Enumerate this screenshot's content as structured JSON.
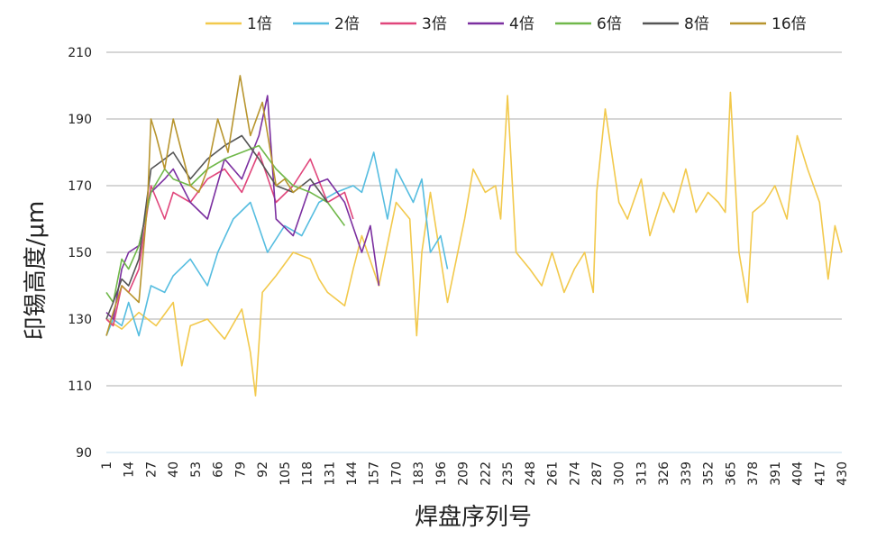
{
  "chart_data": {
    "type": "line",
    "xlabel": "焊盘序列号",
    "ylabel": "印锡高度/μm",
    "ylim": [
      90,
      210
    ],
    "yticks": [
      90,
      110,
      130,
      150,
      170,
      190,
      210
    ],
    "xlim": [
      1,
      430
    ],
    "xticks": [
      1,
      14,
      27,
      40,
      53,
      66,
      79,
      92,
      105,
      118,
      131,
      144,
      157,
      170,
      183,
      196,
      209,
      222,
      235,
      248,
      261,
      274,
      287,
      300,
      313,
      326,
      339,
      352,
      365,
      378,
      391,
      404,
      417,
      430
    ],
    "grid": true,
    "legend_position": "top",
    "series": [
      {
        "name": "1倍",
        "color": "#f2c94c",
        "x": [
          1,
          10,
          20,
          30,
          40,
          45,
          50,
          60,
          70,
          80,
          85,
          88,
          92,
          100,
          110,
          120,
          125,
          130,
          140,
          145,
          150,
          160,
          170,
          178,
          182,
          185,
          190,
          200,
          210,
          215,
          222,
          228,
          231,
          235,
          240,
          248,
          255,
          261,
          268,
          274,
          280,
          285,
          287,
          292,
          300,
          305,
          313,
          318,
          326,
          332,
          339,
          345,
          352,
          358,
          362,
          365,
          370,
          375,
          378,
          385,
          391,
          398,
          404,
          410,
          417,
          422,
          426,
          430
        ],
        "y": [
          130,
          127,
          132,
          128,
          135,
          116,
          128,
          130,
          124,
          133,
          120,
          107,
          138,
          143,
          150,
          148,
          142,
          138,
          134,
          145,
          155,
          140,
          165,
          160,
          125,
          150,
          168,
          135,
          160,
          175,
          168,
          170,
          160,
          197,
          150,
          145,
          140,
          150,
          138,
          145,
          150,
          138,
          168,
          193,
          165,
          160,
          172,
          155,
          168,
          162,
          175,
          162,
          168,
          165,
          162,
          198,
          150,
          135,
          162,
          165,
          170,
          160,
          185,
          175,
          165,
          142,
          158,
          150
        ]
      },
      {
        "name": "2倍",
        "color": "#56bde0",
        "x": [
          1,
          5,
          10,
          14,
          20,
          27,
          35,
          40,
          50,
          60,
          66,
          75,
          85,
          95,
          105,
          115,
          125,
          135,
          145,
          150,
          157,
          165,
          170,
          175,
          180,
          185,
          190,
          196,
          200
        ],
        "y": [
          125,
          130,
          128,
          135,
          125,
          140,
          138,
          143,
          148,
          140,
          150,
          160,
          165,
          150,
          158,
          155,
          165,
          168,
          170,
          168,
          180,
          160,
          175,
          170,
          165,
          172,
          150,
          155,
          145
        ]
      },
      {
        "name": "3倍",
        "color": "#e0457b",
        "x": [
          1,
          5,
          10,
          14,
          20,
          27,
          35,
          40,
          50,
          60,
          70,
          80,
          90,
          100,
          110,
          120,
          130,
          140,
          145
        ],
        "y": [
          130,
          128,
          140,
          138,
          145,
          170,
          160,
          168,
          165,
          172,
          175,
          168,
          180,
          165,
          170,
          178,
          165,
          168,
          160
        ]
      },
      {
        "name": "4倍",
        "color": "#7b2fa0",
        "x": [
          1,
          5,
          10,
          14,
          20,
          27,
          35,
          40,
          50,
          60,
          70,
          80,
          90,
          95,
          100,
          110,
          120,
          130,
          140,
          150,
          155,
          160
        ],
        "y": [
          132,
          130,
          145,
          150,
          152,
          168,
          172,
          175,
          165,
          160,
          178,
          172,
          185,
          197,
          160,
          155,
          170,
          172,
          165,
          150,
          158,
          140
        ]
      },
      {
        "name": "6倍",
        "color": "#70b84a",
        "x": [
          1,
          5,
          10,
          14,
          20,
          27,
          35,
          40,
          50,
          60,
          70,
          80,
          90,
          100,
          110,
          120,
          130,
          140
        ],
        "y": [
          138,
          135,
          148,
          145,
          152,
          168,
          175,
          172,
          170,
          175,
          178,
          180,
          182,
          175,
          170,
          168,
          165,
          158
        ]
      },
      {
        "name": "8倍",
        "color": "#555555",
        "x": [
          1,
          5,
          10,
          14,
          20,
          27,
          35,
          40,
          50,
          60,
          70,
          80,
          90,
          100,
          110,
          120,
          130
        ],
        "y": [
          130,
          135,
          142,
          140,
          148,
          175,
          178,
          180,
          172,
          178,
          182,
          185,
          178,
          170,
          168,
          172,
          165
        ]
      },
      {
        "name": "16倍",
        "color": "#b8952e",
        "x": [
          1,
          5,
          10,
          14,
          20,
          25,
          27,
          30,
          35,
          40,
          45,
          50,
          55,
          60,
          66,
          72,
          79,
          85,
          92,
          100,
          105,
          110,
          115
        ],
        "y": [
          125,
          132,
          140,
          138,
          135,
          165,
          190,
          185,
          175,
          190,
          180,
          170,
          168,
          175,
          190,
          180,
          203,
          185,
          195,
          170,
          172,
          168,
          170
        ]
      }
    ]
  }
}
